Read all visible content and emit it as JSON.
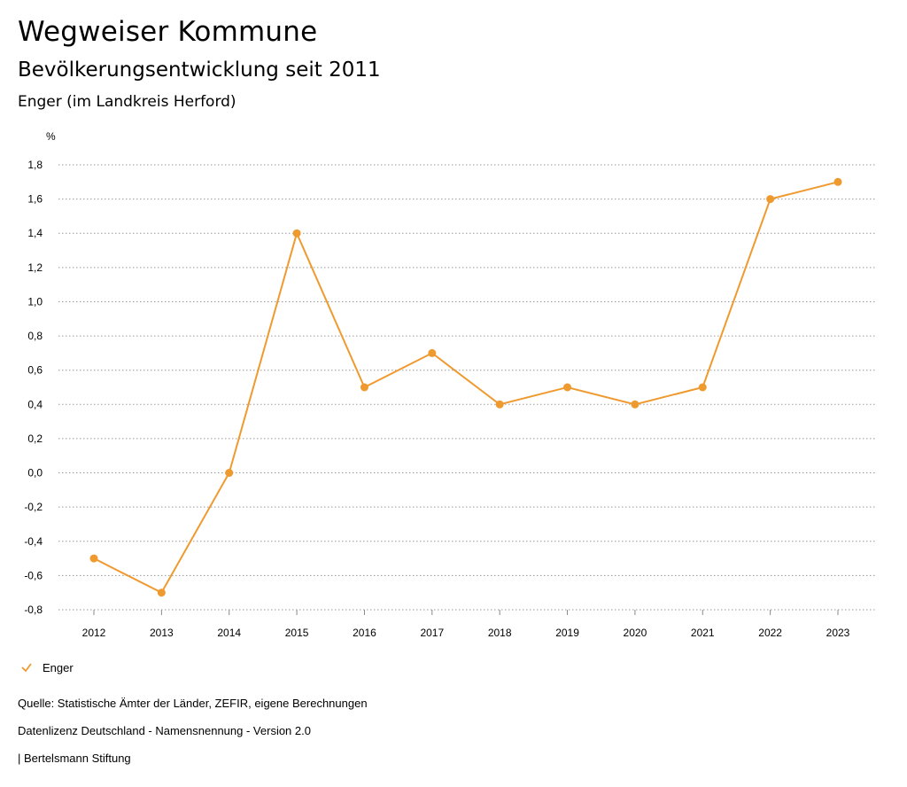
{
  "header": {
    "title": "Wegweiser Kommune",
    "subtitle": "Bevölkerungsentwicklung seit 2011",
    "region": "Enger (im Landkreis Herford)"
  },
  "chart_data": {
    "type": "line",
    "ylabel": "%",
    "ylim": [
      -0.8,
      1.8
    ],
    "yticks": [
      -0.8,
      -0.6,
      -0.4,
      -0.2,
      0.0,
      0.2,
      0.4,
      0.6,
      0.8,
      1.0,
      1.2,
      1.4,
      1.6,
      1.8
    ],
    "ytick_labels": [
      "-0,8",
      "-0,6",
      "-0,4",
      "-0,2",
      "0,0",
      "0,2",
      "0,4",
      "0,6",
      "0,8",
      "1,0",
      "1,2",
      "1,4",
      "1,6",
      "1,8"
    ],
    "categories": [
      "2012",
      "2013",
      "2014",
      "2015",
      "2016",
      "2017",
      "2018",
      "2019",
      "2020",
      "2021",
      "2022",
      "2023"
    ],
    "grid": "horizontal-dotted",
    "legend_position": "bottom-left",
    "series": [
      {
        "name": "Enger",
        "color": "#ef9a2f",
        "values": [
          -0.5,
          -0.7,
          0.0,
          1.4,
          0.5,
          0.7,
          0.4,
          0.5,
          0.4,
          0.5,
          1.6,
          1.7
        ]
      }
    ]
  },
  "legend": {
    "label": "Enger",
    "icon": "check-icon"
  },
  "footer": {
    "source": "Quelle: Statistische Ämter der Länder, ZEFIR, eigene Berechnungen",
    "license": "Datenlizenz Deutschland - Namensnennung - Version 2.0",
    "credit": "| Bertelsmann Stiftung"
  }
}
